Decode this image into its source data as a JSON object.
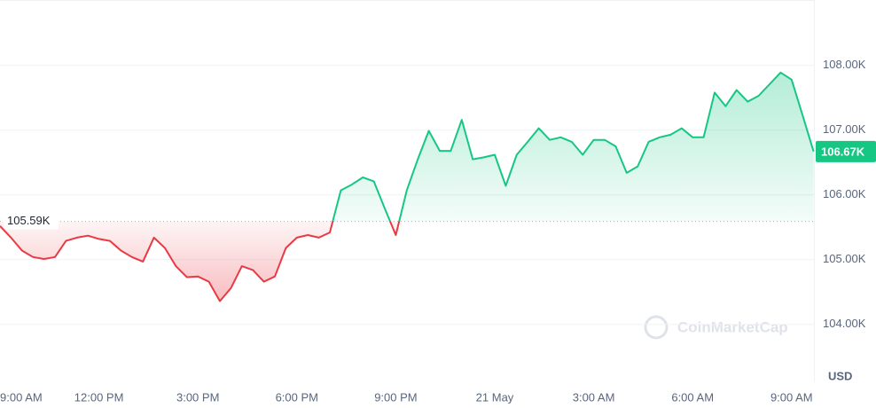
{
  "chart_data": {
    "type": "line",
    "categories": [
      "9:00 AM",
      null,
      null,
      null,
      null,
      null,
      null,
      null,
      null,
      "12:00 PM",
      null,
      null,
      null,
      null,
      null,
      null,
      null,
      null,
      "3:00 PM",
      null,
      null,
      null,
      null,
      null,
      null,
      null,
      null,
      "6:00 PM",
      null,
      null,
      null,
      null,
      null,
      null,
      null,
      null,
      "9:00 PM",
      null,
      null,
      null,
      null,
      null,
      null,
      null,
      null,
      "21 May",
      null,
      null,
      null,
      null,
      null,
      null,
      null,
      null,
      "3:00 AM",
      null,
      null,
      null,
      null,
      null,
      null,
      null,
      null,
      "6:00 AM",
      null,
      null,
      null,
      null,
      null,
      null,
      null,
      null,
      "9:00 AM",
      null,
      null
    ],
    "values": [
      105.52,
      105.34,
      105.14,
      105.04,
      105.01,
      105.04,
      105.29,
      105.34,
      105.37,
      105.32,
      105.29,
      105.14,
      105.04,
      104.97,
      105.34,
      105.18,
      104.9,
      104.73,
      104.74,
      104.66,
      104.36,
      104.56,
      104.9,
      104.84,
      104.66,
      104.74,
      105.18,
      105.34,
      105.38,
      105.34,
      105.42,
      106.07,
      106.16,
      106.27,
      106.21,
      105.79,
      105.38,
      106.07,
      106.55,
      106.99,
      106.68,
      106.68,
      107.16,
      106.55,
      106.58,
      106.62,
      106.14,
      106.62,
      106.82,
      107.03,
      106.85,
      106.89,
      106.82,
      106.62,
      106.85,
      106.85,
      106.75,
      106.34,
      106.44,
      106.82,
      106.89,
      106.93,
      107.03,
      106.89,
      106.89,
      107.58,
      107.37,
      107.62,
      107.44,
      107.53,
      107.71,
      107.89,
      107.78,
      107.23,
      106.67
    ],
    "color_up": "#16c784",
    "color_down": "#ea3943",
    "baseline": {
      "value": 105.59,
      "label": "105.59K"
    },
    "last_price": {
      "value": 106.67,
      "label": "106.67K"
    },
    "ylim": [
      103.12,
      109.01
    ],
    "yticks": [
      {
        "value": 104,
        "label": "104.00K"
      },
      {
        "value": 105,
        "label": "105.00K"
      },
      {
        "value": 106,
        "label": "106.00K"
      },
      {
        "value": 107,
        "label": "107.00K"
      },
      {
        "value": 108,
        "label": "108.00K"
      }
    ],
    "grid": true,
    "currency": "USD",
    "watermark": "CoinMarketCap"
  }
}
